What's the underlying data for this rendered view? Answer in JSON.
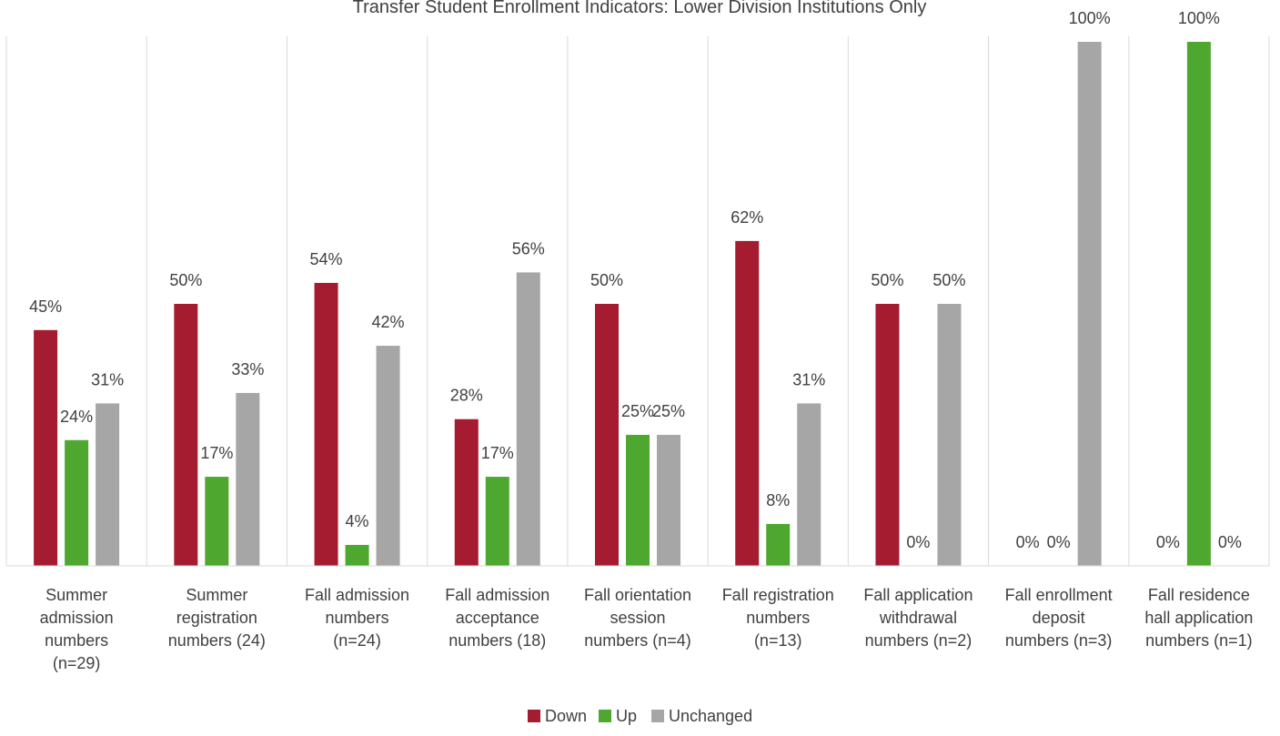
{
  "chart_data": {
    "type": "bar",
    "title": "Transfer Student Enrollment Indicators: Lower Division Institutions Only",
    "categories": [
      [
        "Summer",
        "admission",
        "numbers",
        "(n=29)"
      ],
      [
        "Summer",
        "registration",
        "numbers (24)"
      ],
      [
        "Fall admission",
        "numbers",
        "(n=24)"
      ],
      [
        "Fall admission",
        "acceptance",
        "numbers (18)"
      ],
      [
        "Fall orientation",
        "session",
        "numbers (n=4)"
      ],
      [
        "Fall registration",
        "numbers",
        "(n=13)"
      ],
      [
        "Fall application",
        "withdrawal",
        "numbers (n=2)"
      ],
      [
        "Fall enrollment",
        "deposit",
        "numbers (n=3)"
      ],
      [
        "Fall residence",
        "hall application",
        "numbers (n=1)"
      ]
    ],
    "series": [
      {
        "name": "Down",
        "color": "#a51c30",
        "values": [
          45,
          50,
          54,
          28,
          50,
          62,
          50,
          0,
          0
        ]
      },
      {
        "name": "Up",
        "color": "#4ea72e",
        "values": [
          24,
          17,
          4,
          17,
          25,
          8,
          0,
          0,
          100
        ]
      },
      {
        "name": "Unchanged",
        "color": "#a6a6a6",
        "values": [
          31,
          33,
          42,
          56,
          25,
          31,
          50,
          100,
          0
        ]
      }
    ],
    "data_labels": [
      [
        "45%",
        "50%",
        "54%",
        "28%",
        "50%",
        "62%",
        "50%",
        "0%",
        "0%"
      ],
      [
        "24%",
        "17%",
        "4%",
        "17%",
        "25%",
        "8%",
        "0%",
        "0%",
        "100%"
      ],
      [
        "31%",
        "33%",
        "42%",
        "56%",
        "25%",
        "31%",
        "50%",
        "100%",
        "0%"
      ]
    ],
    "ylim": [
      0,
      100
    ],
    "grid": "vertical category separators",
    "legend": "bottom-center"
  }
}
